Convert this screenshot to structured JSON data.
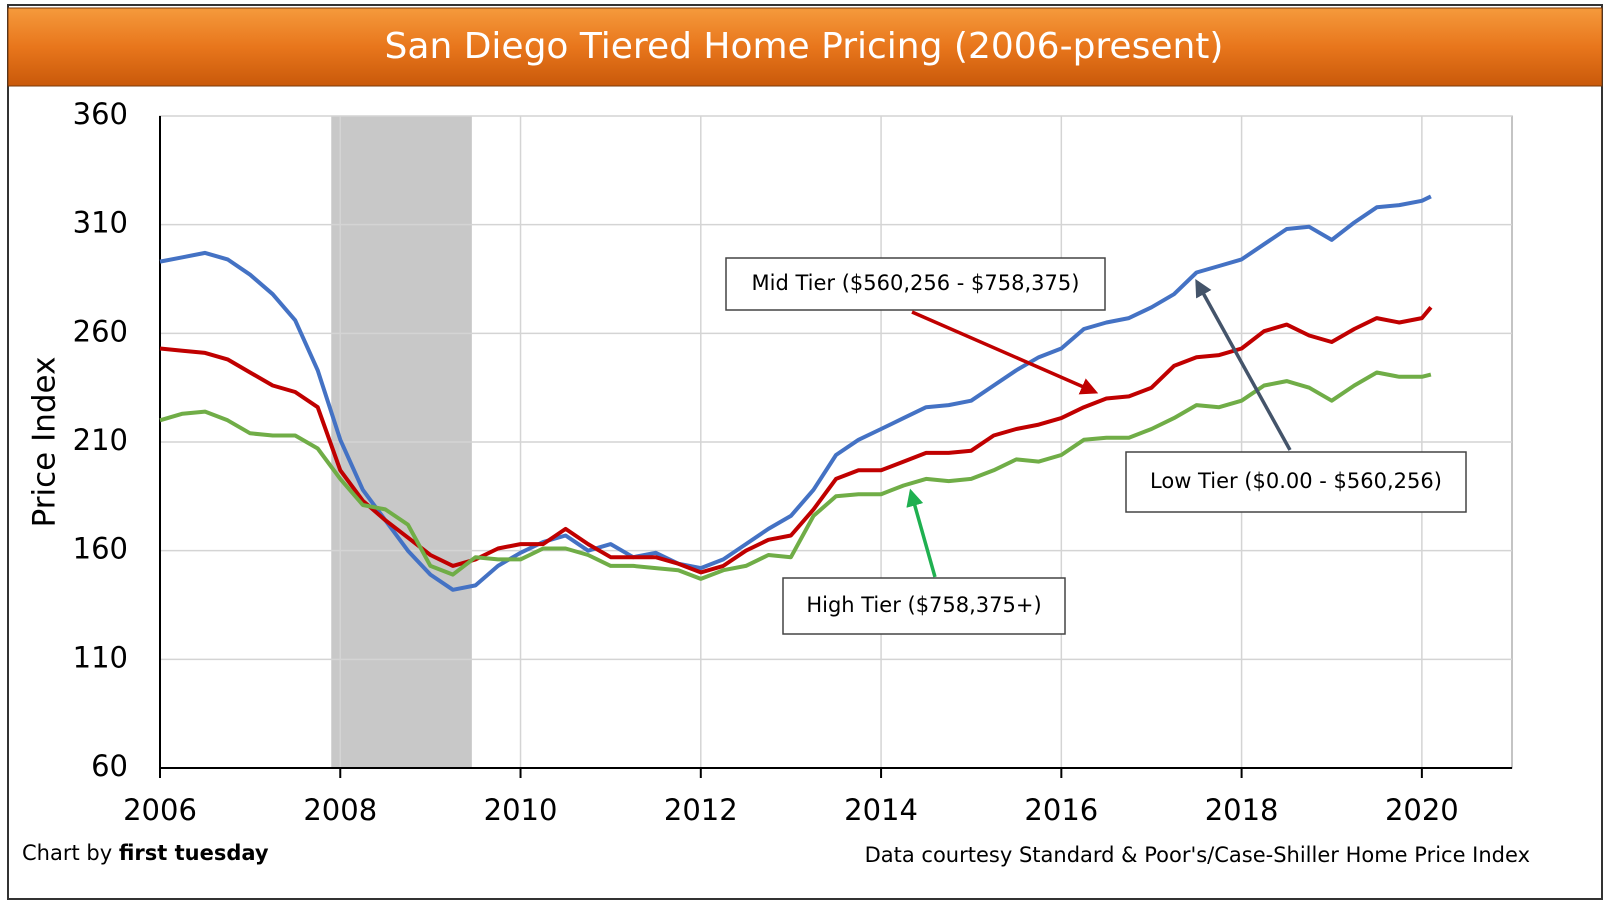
{
  "chart_data": {
    "type": "line",
    "title": "San Diego Tiered Home Pricing (2006-present)",
    "y_label": "Price Index",
    "credit_prefix": "Chart by",
    "credit_name": "first tuesday",
    "source": "Data courtesy Standard & Poor's/Case-Shiller Home Price Index",
    "shaded_region": [
      2007.9,
      2009.46
    ],
    "xlim": [
      2006,
      2021
    ],
    "xticks": [
      2006,
      2008,
      2010,
      2012,
      2014,
      2016,
      2018,
      2020
    ],
    "ylim": [
      60,
      360
    ],
    "yticks": [
      60,
      110,
      160,
      210,
      260,
      310,
      360
    ],
    "grid": true,
    "x": [
      2006,
      2006.25,
      2006.5,
      2006.75,
      2007,
      2007.25,
      2007.5,
      2007.75,
      2008,
      2008.25,
      2008.5,
      2008.75,
      2009,
      2009.25,
      2009.5,
      2009.75,
      2010,
      2010.25,
      2010.5,
      2010.75,
      2011,
      2011.25,
      2011.5,
      2011.75,
      2012,
      2012.25,
      2012.5,
      2012.75,
      2013,
      2013.25,
      2013.5,
      2013.75,
      2014,
      2014.25,
      2014.5,
      2014.75,
      2015,
      2015.25,
      2015.5,
      2015.75,
      2016,
      2016.25,
      2016.5,
      2016.75,
      2017,
      2017.25,
      2017.5,
      2017.75,
      2018,
      2018.25,
      2018.5,
      2018.75,
      2019,
      2019.25,
      2019.5,
      2019.75,
      2020,
      2020.1
    ],
    "series": [
      {
        "name": "Low Tier ($0.00 - $560,256)",
        "color": "#4472c4",
        "values": [
          293,
          295,
          297,
          294,
          287,
          278,
          266,
          243,
          211,
          188,
          174,
          160,
          149,
          142,
          144,
          153,
          159,
          164,
          167,
          160,
          163,
          157,
          159,
          154,
          152,
          156,
          163,
          170,
          176,
          188,
          204,
          211,
          216,
          221,
          226,
          227,
          229,
          236,
          243,
          249,
          253,
          262,
          265,
          267,
          272,
          278,
          288,
          291,
          294,
          301,
          308,
          309,
          303,
          311,
          318,
          319,
          321,
          323
        ]
      },
      {
        "name": "Mid Tier ($560,256 - $758,375)",
        "color": "#c00000",
        "values": [
          253,
          252,
          251,
          248,
          242,
          236,
          233,
          226,
          197,
          183,
          174,
          166,
          158,
          153,
          156,
          161,
          163,
          163,
          170,
          163,
          157,
          157,
          157,
          154,
          150,
          153,
          160,
          165,
          167,
          179,
          193,
          197,
          197,
          201,
          205,
          205,
          206,
          213,
          216,
          218,
          221,
          226,
          230,
          231,
          235,
          245,
          249,
          250,
          253,
          261,
          264,
          259,
          256,
          262,
          267,
          265,
          267,
          272
        ]
      },
      {
        "name": "High Tier ($758,375+)",
        "color": "#70ad47",
        "values": [
          220,
          223,
          224,
          220,
          214,
          213,
          213,
          207,
          193,
          181,
          179,
          172,
          153,
          149,
          157,
          156,
          156,
          161,
          161,
          158,
          153,
          153,
          152,
          151,
          147,
          151,
          153,
          158,
          157,
          176,
          185,
          186,
          186,
          190,
          193,
          192,
          193,
          197,
          202,
          201,
          204,
          211,
          212,
          212,
          216,
          221,
          227,
          226,
          229,
          236,
          238,
          235,
          229,
          236,
          242,
          240,
          240,
          241
        ]
      }
    ]
  }
}
